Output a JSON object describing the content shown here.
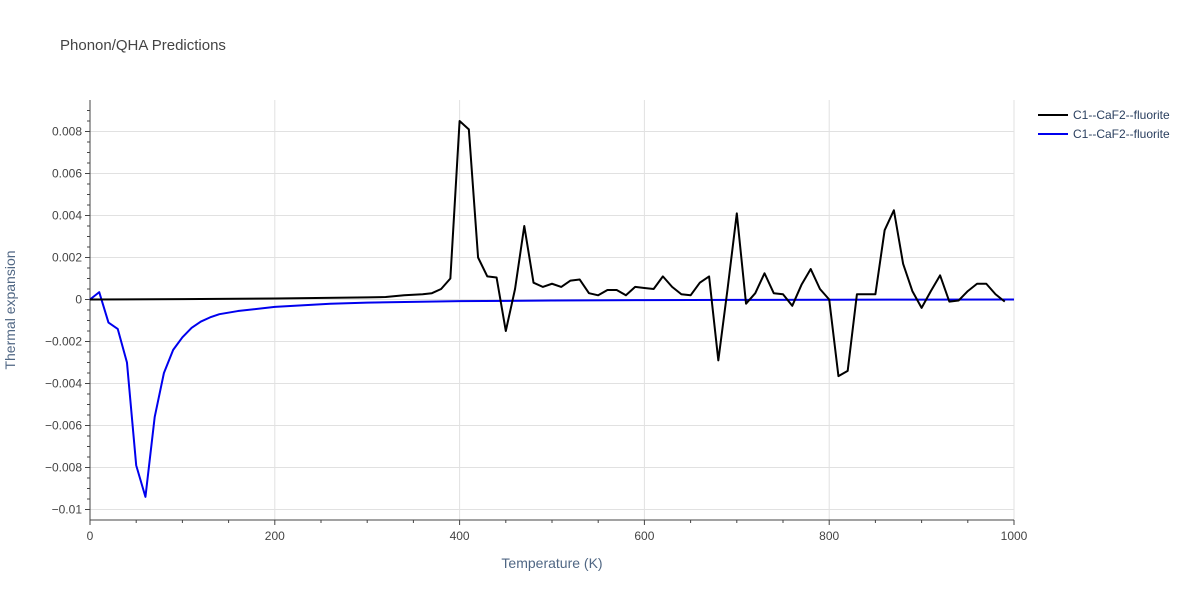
{
  "chart_data": {
    "type": "line",
    "title": "Phonon/QHA Predictions",
    "xlabel": "Temperature (K)",
    "ylabel": "Thermal expansion",
    "xlim": [
      0,
      1000
    ],
    "ylim": [
      -0.0105,
      0.0095
    ],
    "x_ticks": [
      0,
      200,
      400,
      600,
      800,
      1000
    ],
    "x_tick_labels": [
      "0",
      "200",
      "400",
      "600",
      "800",
      "1000"
    ],
    "y_ticks": [
      -0.01,
      -0.008,
      -0.006,
      -0.004,
      -0.002,
      0,
      0.002,
      0.004,
      0.006,
      0.008
    ],
    "y_tick_labels": [
      "−0.01",
      "−0.008",
      "−0.006",
      "−0.004",
      "−0.002",
      "0",
      "0.002",
      "0.004",
      "0.006",
      "0.008"
    ],
    "grid": true,
    "legend_position": "top-right",
    "series": [
      {
        "name": "C1--CaF2--fluorite",
        "color": "#000000",
        "x": [
          0,
          100,
          200,
          300,
          320,
          340,
          360,
          370,
          380,
          390,
          400,
          410,
          420,
          430,
          440,
          450,
          460,
          470,
          480,
          490,
          500,
          510,
          520,
          530,
          540,
          550,
          560,
          570,
          580,
          590,
          600,
          610,
          620,
          630,
          640,
          650,
          660,
          670,
          680,
          690,
          700,
          710,
          720,
          730,
          740,
          750,
          760,
          770,
          780,
          790,
          800,
          810,
          820,
          830,
          840,
          850,
          860,
          870,
          880,
          890,
          900,
          910,
          920,
          930,
          940,
          950,
          960,
          970,
          980,
          990
        ],
        "y": [
          0,
          2e-05,
          5e-05,
          0.0001,
          0.00012,
          0.0002,
          0.00025,
          0.0003,
          0.0005,
          0.001,
          0.0085,
          0.0081,
          0.002,
          0.0011,
          0.00105,
          -0.0015,
          0.0005,
          0.0035,
          0.0008,
          0.0006,
          0.00075,
          0.0006,
          0.0009,
          0.00095,
          0.0003,
          0.0002,
          0.00045,
          0.00045,
          0.0002,
          0.0006,
          0.00055,
          0.0005,
          0.0011,
          0.0006,
          0.00025,
          0.0002,
          0.0008,
          0.0011,
          -0.0029,
          0.0005,
          0.0041,
          -0.0002,
          0.0003,
          0.00125,
          0.0003,
          0.00025,
          -0.0003,
          0.0007,
          0.00145,
          0.0005,
          0.0,
          -0.00365,
          -0.0034,
          0.00025,
          0.00025,
          0.00025,
          0.0033,
          0.00425,
          0.0017,
          0.0004,
          -0.0004,
          0.0004,
          0.00115,
          -0.0001,
          -5e-05,
          0.0004,
          0.00075,
          0.00075,
          0.00025,
          -0.0001
        ]
      },
      {
        "name": "C1--CaF2--fluorite",
        "color": "#0000ee",
        "x": [
          0,
          10,
          20,
          30,
          40,
          50,
          60,
          70,
          80,
          90,
          100,
          110,
          120,
          130,
          140,
          160,
          200,
          260,
          300,
          400,
          500,
          600,
          700,
          800,
          900,
          1000
        ],
        "y": [
          0,
          0.00035,
          -0.0011,
          -0.0014,
          -0.003,
          -0.0079,
          -0.0094,
          -0.0056,
          -0.0035,
          -0.0024,
          -0.0018,
          -0.00135,
          -0.00105,
          -0.00085,
          -0.0007,
          -0.00055,
          -0.00035,
          -0.0002,
          -0.00015,
          -8e-05,
          -5e-05,
          -3e-05,
          -2e-05,
          -1e-05,
          -5e-06,
          0
        ]
      }
    ]
  }
}
